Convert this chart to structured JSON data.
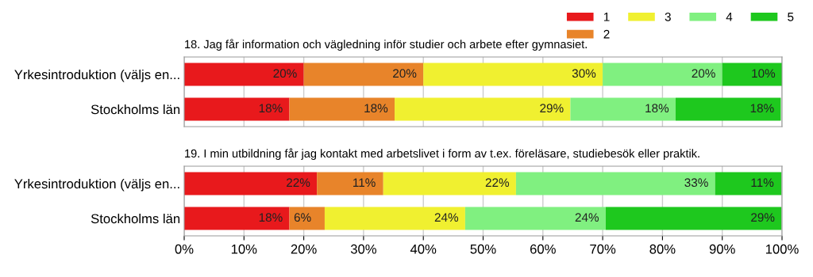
{
  "chart_data": [
    {
      "type": "bar",
      "orientation": "horizontal",
      "stacked": true,
      "title": "18. Jag får information och vägledning inför studier och arbete efter gymnasiet.",
      "categories": [
        "Yrkesintroduktion (väljs en...",
        "Stockholms län"
      ],
      "series": [
        {
          "name": "1",
          "color": "#e8191c",
          "values": [
            20,
            17.6
          ],
          "value_labels": [
            "20%",
            "18%"
          ]
        },
        {
          "name": "2",
          "color": "#e8842a",
          "values": [
            20,
            17.6
          ],
          "value_labels": [
            "20%",
            "18%"
          ]
        },
        {
          "name": "3",
          "color": "#f0f030",
          "values": [
            30,
            29.4
          ],
          "value_labels": [
            "30%",
            "29%"
          ]
        },
        {
          "name": "4",
          "color": "#80f080",
          "values": [
            20,
            17.6
          ],
          "value_labels": [
            "20%",
            "18%"
          ]
        },
        {
          "name": "5",
          "color": "#1ec81e",
          "values": [
            10,
            17.6
          ],
          "value_labels": [
            "10%",
            "18%"
          ]
        }
      ],
      "xlim": [
        0,
        100
      ],
      "xticks": [
        {
          "value": 0,
          "label": null
        },
        {
          "value": 10,
          "label": null
        },
        {
          "value": 20,
          "label": null
        },
        {
          "value": 30,
          "label": null
        },
        {
          "value": 40,
          "label": null
        },
        {
          "value": 50,
          "label": null
        },
        {
          "value": 60,
          "label": null
        },
        {
          "value": 70,
          "label": null
        },
        {
          "value": 80,
          "label": null
        },
        {
          "value": 90,
          "label": null
        },
        {
          "value": 100,
          "label": null
        }
      ],
      "tick_labels": "y",
      "grid": "x",
      "legend": "top right"
    },
    {
      "type": "bar",
      "orientation": "horizontal",
      "stacked": true,
      "title": "19. I min utbildning får jag kontakt med arbetslivet i form av t.ex. föreläsare, studiebesök eller praktik.",
      "categories": [
        "Yrkesintroduktion (väljs en...",
        "Stockholms län"
      ],
      "series": [
        {
          "color": "#e8191c",
          "values": [
            22.2,
            17.6
          ],
          "value_labels": [
            "22%",
            "18%"
          ]
        },
        {
          "color": "#e8842a",
          "values": [
            11.1,
            5.9
          ],
          "value_labels": [
            "11%",
            "6%"
          ]
        },
        {
          "color": "#f0f030",
          "values": [
            22.2,
            23.5
          ],
          "value_labels": [
            "22%",
            "24%"
          ]
        },
        {
          "color": "#80f080",
          "values": [
            33.3,
            23.5
          ],
          "value_labels": [
            "33%",
            "24%"
          ]
        },
        {
          "color": "#1ec81e",
          "values": [
            11.1,
            29.4
          ],
          "value_labels": [
            "11%",
            "29%"
          ]
        }
      ],
      "xlim": [
        0,
        100
      ],
      "xticks": [
        {
          "value": 0,
          "label": "0%"
        },
        {
          "value": 10,
          "label": "10%"
        },
        {
          "value": 20,
          "label": "20%"
        },
        {
          "value": 30,
          "label": "30%"
        },
        {
          "value": 40,
          "label": "40%"
        },
        {
          "value": 50,
          "label": "50%"
        },
        {
          "value": 60,
          "label": "60%"
        },
        {
          "value": 70,
          "label": "70%"
        },
        {
          "value": 80,
          "label": "80%"
        },
        {
          "value": 90,
          "label": "90%"
        },
        {
          "value": 100,
          "label": "100%"
        }
      ],
      "grid": "x"
    }
  ]
}
